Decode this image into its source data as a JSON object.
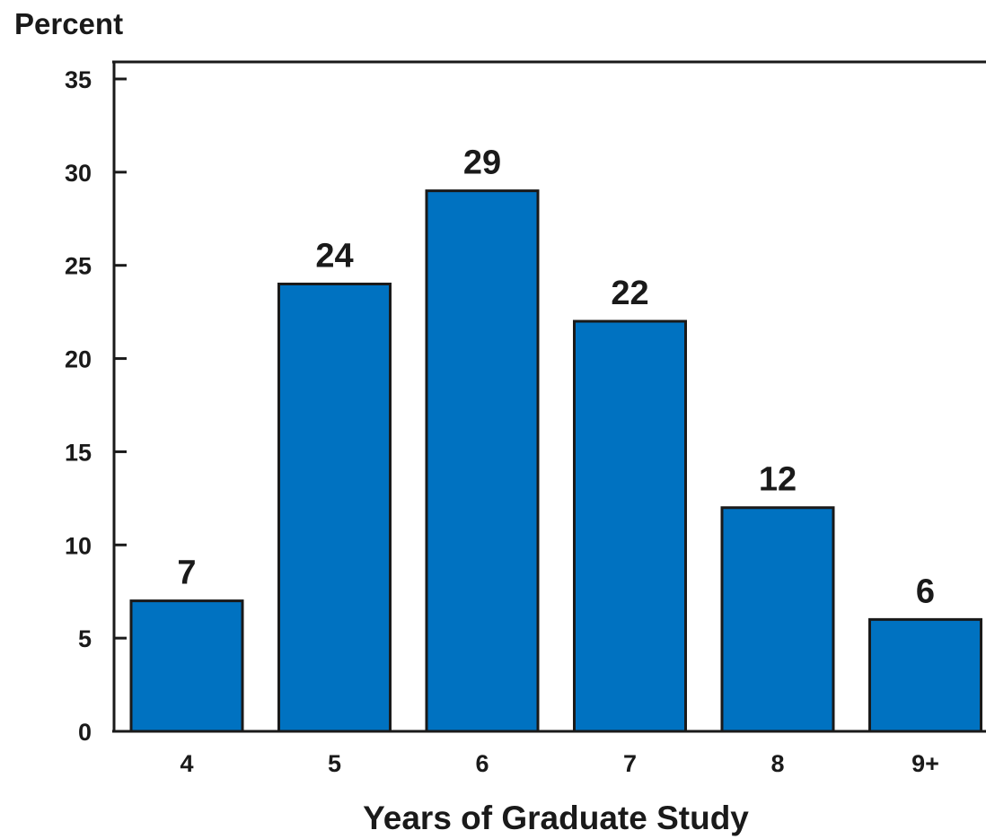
{
  "chart_data": {
    "type": "bar",
    "title": "",
    "ylabel": "Percent",
    "xlabel": "Years of Graduate Study",
    "categories": [
      "4",
      "5",
      "6",
      "7",
      "8",
      "9+"
    ],
    "values": [
      7,
      24,
      29,
      22,
      12,
      6
    ],
    "value_labels": [
      "7",
      "24",
      "29",
      "22",
      "12",
      "6"
    ],
    "ylim": [
      0,
      35
    ],
    "yticks": [
      0,
      5,
      10,
      15,
      20,
      25,
      30,
      35
    ],
    "ytick_labels": [
      "0",
      "5",
      "10",
      "15",
      "20",
      "25",
      "30",
      "35"
    ],
    "grid": false,
    "legend": "none",
    "colors": {
      "bar_fill": "#0072c1",
      "bar_stroke": "#1a1a1a",
      "axis": "#1a1a1a",
      "text": "#1a1a1a",
      "background": "#ffffff"
    }
  }
}
